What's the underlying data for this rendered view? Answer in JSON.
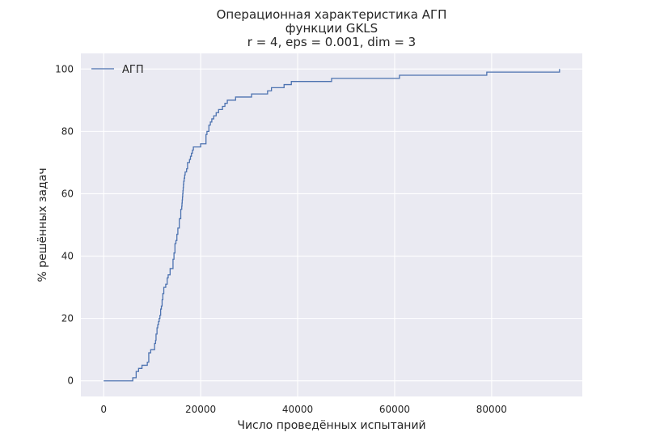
{
  "chart_data": {
    "type": "line",
    "title_lines": [
      "Операционная характеристика АГП",
      "функции GKLS",
      "r = 4, eps = 0.001, dim = 3"
    ],
    "xlabel": "Число проведённых испытаний",
    "ylabel": "% решённых задач",
    "xlim": [
      -4700,
      98700
    ],
    "ylim": [
      -5,
      105
    ],
    "x_ticks": [
      0,
      20000,
      40000,
      60000,
      80000
    ],
    "x_tick_labels": [
      "0",
      "20000",
      "40000",
      "60000",
      "80000"
    ],
    "y_ticks": [
      0,
      20,
      40,
      60,
      80,
      100
    ],
    "y_tick_labels": [
      "0",
      "20",
      "40",
      "60",
      "80",
      "100"
    ],
    "grid": true,
    "legend_position": "top-left",
    "step": "post",
    "series": [
      {
        "name": "АГП",
        "color": "#4c72b0",
        "x": [
          0,
          6000,
          6700,
          7200,
          7900,
          9000,
          9300,
          9700,
          10500,
          10700,
          10800,
          11000,
          11150,
          11300,
          11450,
          11600,
          11750,
          11900,
          12050,
          12200,
          12400,
          12800,
          13100,
          13300,
          13700,
          14300,
          14500,
          14700,
          14900,
          15100,
          15300,
          15600,
          15900,
          16100,
          16150,
          16200,
          16250,
          16300,
          16350,
          16400,
          16450,
          16500,
          16600,
          16700,
          16800,
          17100,
          17300,
          17700,
          17900,
          18100,
          18300,
          18500,
          18700,
          18800,
          19200,
          20000,
          21100,
          21300,
          21700,
          22000,
          22300,
          22700,
          23200,
          23700,
          24500,
          25000,
          25500,
          27200,
          30500,
          33800,
          34600,
          37200,
          38700,
          40000,
          47000,
          61000,
          79000,
          94000
        ],
        "y": [
          0,
          1,
          3,
          4,
          5,
          6,
          9,
          10,
          12,
          13,
          15,
          17,
          18,
          19,
          20,
          21,
          23,
          24,
          26,
          28,
          30,
          31,
          33,
          34,
          36,
          39,
          41,
          44,
          45,
          47,
          49,
          52,
          55,
          56,
          57,
          58,
          59,
          60,
          61,
          62,
          63,
          64,
          65,
          66,
          67,
          68,
          70,
          71,
          72,
          73,
          74,
          75,
          75,
          75,
          75,
          76,
          79,
          80,
          82,
          83,
          84,
          85,
          86,
          87,
          88,
          89,
          90,
          91,
          92,
          93,
          94,
          95,
          96,
          96,
          97,
          98,
          99,
          100
        ]
      }
    ]
  }
}
